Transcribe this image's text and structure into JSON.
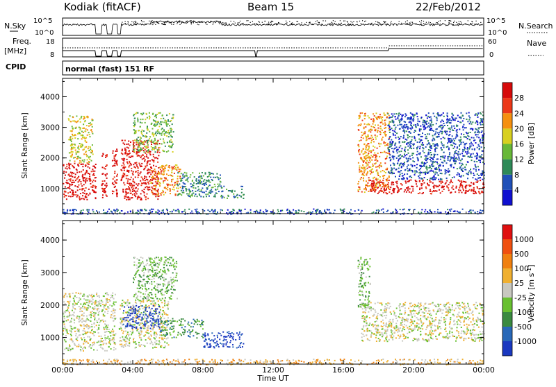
{
  "header": {
    "station": "Kodiak (fitACF)",
    "beam": "Beam 15",
    "date": "22/Feb/2012"
  },
  "noise_panel": {
    "left_label": "N.Sky",
    "right_label": "N.Search",
    "left_ticks": [
      "10^5",
      "10^0"
    ],
    "right_ticks": [
      "10^5",
      "10^0"
    ]
  },
  "freq_panel": {
    "left_label_line1": "Freq.",
    "left_label_line2": "[MHz]",
    "right_label": "Nave",
    "left_ticks": [
      "18",
      "8"
    ],
    "right_ticks": [
      "60",
      "0"
    ]
  },
  "cpid": {
    "label": "CPID",
    "mode": "normal (fast) 151 RF"
  },
  "x_axis": {
    "label": "Time UT",
    "ticks": [
      "00:00",
      "04:00",
      "08:00",
      "12:00",
      "16:00",
      "20:00",
      "00:00"
    ]
  },
  "chart_data": [
    {
      "type": "heatmap",
      "title": "",
      "xlabel": "",
      "ylabel": "Slant Range [km]",
      "xlim": [
        0,
        24
      ],
      "ylim": [
        180,
        4600
      ],
      "yticks": [
        1000,
        2000,
        3000,
        4000
      ],
      "colorbar": {
        "label": "Power [dB]",
        "ticks": [
          "4",
          "8",
          "12",
          "16",
          "20",
          "24",
          "28"
        ],
        "colors": [
          "#1010d0",
          "#2050b8",
          "#2e8a58",
          "#68b838",
          "#d8d020",
          "#f59010",
          "#ec3818",
          "#d60a0a"
        ]
      },
      "regions": [
        {
          "t": [
            0.0,
            1.9
          ],
          "r": [
            650,
            1850
          ],
          "level": 7
        },
        {
          "t": [
            0.3,
            1.7
          ],
          "r": [
            1850,
            3400
          ],
          "level": 4
        },
        {
          "t": [
            2.2,
            2.5
          ],
          "r": [
            700,
            2300
          ],
          "level": 7
        },
        {
          "t": [
            2.8,
            3.1
          ],
          "r": [
            700,
            2400
          ],
          "level": 7
        },
        {
          "t": [
            3.3,
            5.5
          ],
          "r": [
            650,
            2600
          ],
          "level": 7
        },
        {
          "t": [
            4.0,
            6.3
          ],
          "r": [
            2200,
            3500
          ],
          "level": 3
        },
        {
          "t": [
            5.0,
            6.7
          ],
          "r": [
            800,
            1800
          ],
          "level": 5
        },
        {
          "t": [
            6.5,
            9.0
          ],
          "r": [
            750,
            1550
          ],
          "level": 2
        },
        {
          "t": [
            9.0,
            10.3
          ],
          "r": [
            700,
            1100
          ],
          "level": 2
        },
        {
          "t": [
            0.0,
            24.0
          ],
          "r": [
            180,
            350
          ],
          "level": 1
        },
        {
          "t": [
            16.8,
            18.6
          ],
          "r": [
            900,
            3500
          ],
          "level": 5
        },
        {
          "t": [
            17.5,
            24.0
          ],
          "r": [
            850,
            1300
          ],
          "level": 7
        },
        {
          "t": [
            18.5,
            24.0
          ],
          "r": [
            1300,
            2100
          ],
          "level": 1
        },
        {
          "t": [
            18.5,
            24.0
          ],
          "r": [
            2100,
            3500
          ],
          "level": 1
        }
      ]
    },
    {
      "type": "heatmap",
      "title": "",
      "xlabel": "Time UT",
      "ylabel": "Slant Range [km]",
      "xlim": [
        0,
        24
      ],
      "ylim": [
        180,
        4600
      ],
      "yticks": [
        1000,
        2000,
        3000,
        4000
      ],
      "colorbar": {
        "label": "Velocity [m s-1]",
        "ticks": [
          "1000",
          "500",
          "100",
          "25",
          "-25",
          "-100",
          "-500",
          "-1000"
        ],
        "colors": [
          "#1a38c0",
          "#2868b8",
          "#3a8a40",
          "#68c030",
          "#c8c8c0",
          "#f0b030",
          "#f08010",
          "#f05010",
          "#e01010"
        ]
      },
      "regions": [
        {
          "t": [
            0.0,
            3.0
          ],
          "r": [
            600,
            2400
          ],
          "level": 4
        },
        {
          "t": [
            3.2,
            6.0
          ],
          "r": [
            700,
            2200
          ],
          "level": 4
        },
        {
          "t": [
            3.4,
            5.5
          ],
          "r": [
            1300,
            2000
          ],
          "level": 0
        },
        {
          "t": [
            5.5,
            8.0
          ],
          "r": [
            1000,
            1600
          ],
          "level": 2
        },
        {
          "t": [
            8.0,
            10.3
          ],
          "r": [
            700,
            1200
          ],
          "level": 0
        },
        {
          "t": [
            4.0,
            6.5
          ],
          "r": [
            2200,
            3500
          ],
          "level": 3
        },
        {
          "t": [
            0.0,
            24.0
          ],
          "r": [
            180,
            350
          ],
          "level": 5
        },
        {
          "t": [
            16.8,
            17.5
          ],
          "r": [
            1900,
            3500
          ],
          "level": 3
        },
        {
          "t": [
            17.0,
            24.0
          ],
          "r": [
            900,
            2100
          ],
          "level": 4
        }
      ]
    }
  ],
  "scale_labels": {
    "power_title": "Power [dB]",
    "velocity_title": "Velocity [m s",
    "velocity_sup": "-1",
    "velocity_close": "]"
  }
}
